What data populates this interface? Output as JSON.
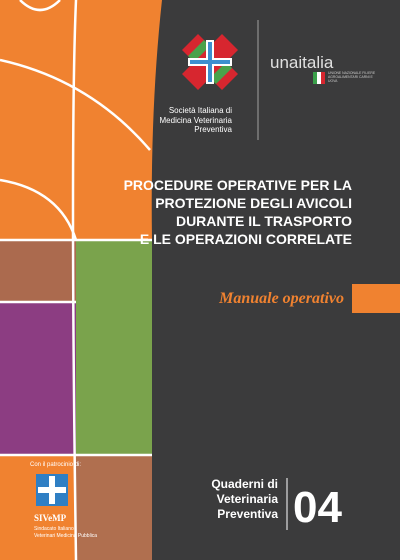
{
  "logos": {
    "society": "Società Italiana di Medicina Veterinaria Preventiva",
    "partner": "unaitalia",
    "partner_tagline": "Unione Nazionale Filiere Agroalimentari Carni e Uova"
  },
  "title": [
    "PROCEDURE OPERATIVE PER LA",
    "PROTEZIONE DEGLI AVICOLI",
    "DURANTE IL TRASPORTO",
    "E LE OPERAZIONI CORRELATE"
  ],
  "subtitle": "Manuale operativo",
  "patronage": {
    "label": "Con il patrocinio di:",
    "name": "SIVeMP",
    "full_name": [
      "Sindacato Italiano",
      "Veterinari Medicina Pubblica"
    ]
  },
  "series": {
    "name": [
      "Quaderni di",
      "Veterinaria",
      "Preventiva"
    ],
    "number": "04"
  }
}
